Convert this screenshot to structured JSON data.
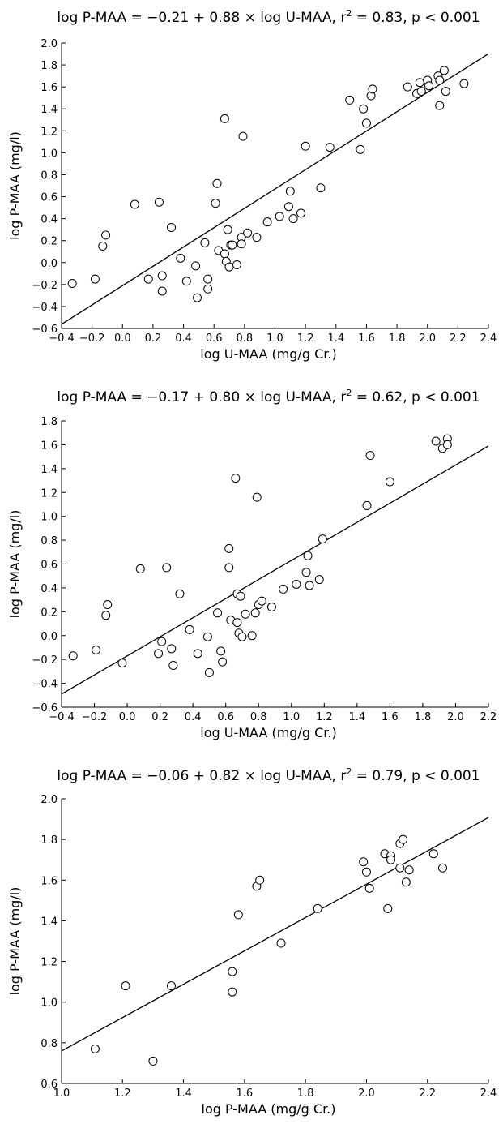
{
  "chart_data": [
    {
      "type": "scatter",
      "title": {
        "pre": "log P-MAA = −0.21 + 0.88 × log U-MAA, r",
        "sup": "2",
        "post": " = 0.83, p < 0.001"
      },
      "xlabel": "log U-MAA (mg/g Cr.)",
      "ylabel": "log P-MAA (mg/l)",
      "xlim": [
        -0.4,
        2.4
      ],
      "ylim": [
        -0.6,
        2.0
      ],
      "xticks": [
        -0.4,
        -0.2,
        0.0,
        0.2,
        0.4,
        0.6,
        0.8,
        1.0,
        1.2,
        1.4,
        1.6,
        1.8,
        2.0,
        2.2,
        2.4
      ],
      "xtick_labels": [
        "−0.4",
        "−0.2",
        "0.0",
        "0.2",
        "0.4",
        "0.6",
        "0.8",
        "1.0",
        "1.2",
        "1.4",
        "1.6",
        "1.8",
        "2.0",
        "2.2",
        "2.4"
      ],
      "yticks": [
        -0.6,
        -0.4,
        -0.2,
        0.0,
        0.2,
        0.4,
        0.6,
        0.8,
        1.0,
        1.2,
        1.4,
        1.6,
        1.8,
        2.0
      ],
      "ytick_labels": [
        "−0.6",
        "−0.4",
        "−0.2",
        "0.0",
        "0.2",
        "0.4",
        "0.6",
        "0.8",
        "1.0",
        "1.2",
        "1.4",
        "1.6",
        "1.8",
        "2.0"
      ],
      "regression": {
        "intercept": -0.21,
        "slope": 0.88
      },
      "x": [
        -0.33,
        -0.18,
        -0.13,
        -0.11,
        0.08,
        0.17,
        0.24,
        0.26,
        0.26,
        0.32,
        0.38,
        0.42,
        0.48,
        0.49,
        0.54,
        0.56,
        0.56,
        0.61,
        0.62,
        0.63,
        0.67,
        0.67,
        0.68,
        0.69,
        0.7,
        0.71,
        0.72,
        0.75,
        0.78,
        0.78,
        0.79,
        0.82,
        0.88,
        0.95,
        1.03,
        1.09,
        1.1,
        1.12,
        1.17,
        1.2,
        1.3,
        1.36,
        1.49,
        1.56,
        1.58,
        1.6,
        1.63,
        1.64,
        1.87,
        1.93,
        1.95,
        1.96,
        2.0,
        2.01,
        2.07,
        2.08,
        2.08,
        2.11,
        2.12,
        2.24
      ],
      "y": [
        -0.19,
        -0.15,
        0.15,
        0.25,
        0.53,
        -0.15,
        0.55,
        -0.12,
        -0.26,
        0.32,
        0.04,
        -0.17,
        -0.03,
        -0.32,
        0.18,
        -0.15,
        -0.24,
        0.54,
        0.72,
        0.11,
        1.31,
        0.08,
        0.01,
        0.3,
        -0.04,
        0.16,
        0.16,
        -0.02,
        0.23,
        0.17,
        1.15,
        0.27,
        0.23,
        0.37,
        0.42,
        0.51,
        0.65,
        0.4,
        0.45,
        1.06,
        0.68,
        1.05,
        1.48,
        1.03,
        1.4,
        1.27,
        1.52,
        1.58,
        1.6,
        1.54,
        1.64,
        1.56,
        1.66,
        1.61,
        1.7,
        1.66,
        1.43,
        1.75,
        1.56,
        1.63
      ]
    },
    {
      "type": "scatter",
      "title": {
        "pre": "log P-MAA = −0.17 + 0.80 × log U-MAA, r",
        "sup": "2",
        "post": " = 0.62, p < 0.001"
      },
      "xlabel": "log U-MAA (mg/g Cr.)",
      "ylabel": "log P-MAA (mg/l)",
      "xlim": [
        -0.4,
        2.2
      ],
      "ylim": [
        -0.6,
        1.8
      ],
      "xticks": [
        -0.4,
        -0.2,
        0.0,
        0.2,
        0.4,
        0.6,
        0.8,
        1.0,
        1.2,
        1.4,
        1.6,
        1.8,
        2.0,
        2.2
      ],
      "xtick_labels": [
        "−0.4",
        "−0.2",
        "0.0",
        "0.2",
        "0.4",
        "0.6",
        "0.8",
        "1.0",
        "1.2",
        "1.4",
        "1.6",
        "1.8",
        "2.0",
        "2.2"
      ],
      "yticks": [
        -0.6,
        -0.4,
        -0.2,
        0.0,
        0.2,
        0.4,
        0.6,
        0.8,
        1.0,
        1.2,
        1.4,
        1.6,
        1.8
      ],
      "ytick_labels": [
        "−0.6",
        "−0.4",
        "−0.2",
        "0.0",
        "0.2",
        "0.4",
        "0.6",
        "0.8",
        "1.0",
        "1.2",
        "1.4",
        "1.6",
        "1.8"
      ],
      "regression": {
        "intercept": -0.17,
        "slope": 0.8
      },
      "x": [
        -0.33,
        -0.19,
        -0.13,
        -0.12,
        -0.03,
        0.08,
        0.19,
        0.21,
        0.24,
        0.27,
        0.28,
        0.32,
        0.38,
        0.43,
        0.49,
        0.5,
        0.55,
        0.57,
        0.58,
        0.62,
        0.62,
        0.63,
        0.66,
        0.67,
        0.67,
        0.68,
        0.69,
        0.7,
        0.72,
        0.76,
        0.78,
        0.79,
        0.8,
        0.82,
        0.88,
        0.95,
        1.03,
        1.09,
        1.1,
        1.11,
        1.17,
        1.19,
        1.46,
        1.48,
        1.6,
        1.88,
        1.92,
        1.95,
        1.95
      ],
      "y": [
        -0.17,
        -0.12,
        0.17,
        0.26,
        -0.23,
        0.56,
        -0.15,
        -0.05,
        0.57,
        -0.11,
        -0.25,
        0.35,
        0.05,
        -0.15,
        -0.01,
        -0.31,
        0.19,
        -0.13,
        -0.22,
        0.73,
        0.57,
        0.13,
        1.32,
        0.35,
        0.11,
        0.02,
        0.33,
        -0.01,
        0.18,
        0.0,
        0.19,
        1.16,
        0.26,
        0.29,
        0.24,
        0.39,
        0.43,
        0.53,
        0.67,
        0.42,
        0.47,
        0.81,
        1.09,
        1.51,
        1.29,
        1.63,
        1.57,
        1.65,
        1.6
      ]
    },
    {
      "type": "scatter",
      "title": {
        "pre": "log P-MAA = −0.06 + 0.82 × log U-MAA, r",
        "sup": "2",
        "post": " = 0.79, p < 0.001"
      },
      "xlabel": "log P-MAA (mg/g Cr.)",
      "ylabel": "log P-MAA (mg/l)",
      "xlim": [
        1.0,
        2.4
      ],
      "ylim": [
        0.6,
        2.0
      ],
      "xticks": [
        1.0,
        1.2,
        1.4,
        1.6,
        1.8,
        2.0,
        2.2,
        2.4
      ],
      "xtick_labels": [
        "1.0",
        "1.2",
        "1.4",
        "1.6",
        "1.8",
        "2.0",
        "2.2",
        "2.4"
      ],
      "yticks": [
        0.6,
        0.8,
        1.0,
        1.2,
        1.4,
        1.6,
        1.8,
        2.0
      ],
      "ytick_labels": [
        "0.6",
        "0.8",
        "1.0",
        "1.2",
        "1.4",
        "1.6",
        "1.8",
        "2.0"
      ],
      "regression": {
        "intercept": -0.06,
        "slope": 0.82
      },
      "x": [
        1.11,
        1.21,
        1.3,
        1.36,
        1.56,
        1.56,
        1.58,
        1.64,
        1.65,
        1.72,
        1.84,
        1.99,
        2.0,
        2.01,
        2.06,
        2.07,
        2.08,
        2.08,
        2.11,
        2.11,
        2.12,
        2.13,
        2.14,
        2.22,
        2.25
      ],
      "y": [
        0.77,
        1.08,
        0.71,
        1.08,
        1.15,
        1.05,
        1.43,
        1.57,
        1.6,
        1.29,
        1.46,
        1.69,
        1.64,
        1.56,
        1.73,
        1.46,
        1.72,
        1.7,
        1.78,
        1.66,
        1.8,
        1.59,
        1.65,
        1.73,
        1.66
      ]
    }
  ]
}
